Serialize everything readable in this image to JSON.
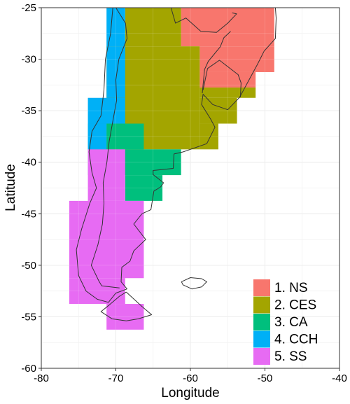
{
  "chart_data": {
    "type": "map",
    "xlabel": "Longitude",
    "ylabel": "Latitude",
    "xlim": [
      -80,
      -40
    ],
    "ylim": [
      -60,
      -25
    ],
    "x_ticks": [
      -80,
      -70,
      -60,
      -50,
      -40
    ],
    "y_ticks": [
      -60,
      -55,
      -50,
      -45,
      -40,
      -35,
      -30,
      -25
    ],
    "x_tick_labels": [
      "-80",
      "-70",
      "-60",
      "-50",
      "-40"
    ],
    "y_tick_labels": [
      "-60",
      "-55",
      "-50",
      "-45",
      "-40",
      "-35",
      "-30",
      "-25"
    ],
    "grid": true,
    "legend_position": "bottom-right",
    "colors": {
      "panel": "#ffffff",
      "grid": "#e8e8e8",
      "coast": "#333333"
    },
    "regions": [
      {
        "label": "1. NS",
        "color": "#F8766D",
        "cells": [
          [
            -61.25,
            -28.75,
            -48.75,
            -25.0
          ],
          [
            -58.75,
            -31.25,
            -48.75,
            -28.75
          ],
          [
            -58.75,
            -32.75,
            -51.25,
            -31.25
          ]
        ]
      },
      {
        "label": "2. CES",
        "color": "#A3A500",
        "cells": [
          [
            -68.75,
            -28.75,
            -61.25,
            -25.0
          ],
          [
            -71.25,
            -38.75,
            -58.75,
            -28.75
          ],
          [
            -58.75,
            -33.75,
            -51.25,
            -32.75
          ],
          [
            -58.75,
            -36.25,
            -53.75,
            -33.75
          ],
          [
            -58.75,
            -38.75,
            -56.25,
            -36.25
          ]
        ]
      },
      {
        "label": "3. CA",
        "color": "#00BF7D",
        "cells": [
          [
            -71.25,
            -38.75,
            -66.25,
            -36.25
          ],
          [
            -73.75,
            -38.75,
            -71.25,
            -36.25
          ],
          [
            -73.75,
            -41.25,
            -61.25,
            -38.75
          ],
          [
            -68.75,
            -43.75,
            -63.75,
            -41.25
          ]
        ]
      },
      {
        "label": "4. CCH",
        "color": "#00B0F6",
        "cells": [
          [
            -71.25,
            -28.75,
            -68.75,
            -25.0
          ],
          [
            -71.25,
            -33.75,
            -68.75,
            -28.75
          ],
          [
            -73.75,
            -36.25,
            -68.75,
            -33.75
          ],
          [
            -73.75,
            -38.75,
            -71.25,
            -36.25
          ]
        ]
      },
      {
        "label": "5. SS",
        "color": "#E76BF3",
        "cells": [
          [
            -73.75,
            -43.75,
            -68.75,
            -38.75
          ],
          [
            -76.25,
            -51.25,
            -66.25,
            -43.75
          ],
          [
            -76.25,
            -53.75,
            -68.75,
            -51.25
          ],
          [
            -71.25,
            -56.25,
            -66.25,
            -53.75
          ]
        ]
      }
    ],
    "coastlines": [
      [
        [
          -70.4,
          -25.0
        ],
        [
          -70.7,
          -27.5
        ],
        [
          -71.4,
          -30.0
        ],
        [
          -71.6,
          -33.0
        ],
        [
          -72.0,
          -35.5
        ],
        [
          -73.2,
          -37.0
        ],
        [
          -73.6,
          -39.0
        ],
        [
          -73.2,
          -41.0
        ],
        [
          -72.6,
          -42.5
        ],
        [
          -73.5,
          -44.0
        ],
        [
          -74.6,
          -46.5
        ],
        [
          -75.3,
          -48.5
        ],
        [
          -75.0,
          -51.0
        ],
        [
          -74.0,
          -52.5
        ],
        [
          -72.5,
          -53.3
        ],
        [
          -71.0,
          -53.6
        ],
        [
          -70.0,
          -52.7
        ],
        [
          -68.5,
          -52.3
        ],
        [
          -69.3,
          -51.6
        ],
        [
          -69.2,
          -50.2
        ],
        [
          -68.1,
          -49.6
        ],
        [
          -67.6,
          -48.6
        ],
        [
          -66.0,
          -47.5
        ],
        [
          -67.6,
          -46.0
        ],
        [
          -66.5,
          -45.0
        ],
        [
          -65.3,
          -44.6
        ],
        [
          -64.9,
          -42.8
        ],
        [
          -64.0,
          -42.4
        ],
        [
          -63.6,
          -42.0
        ],
        [
          -65.0,
          -41.2
        ],
        [
          -65.0,
          -40.8
        ],
        [
          -62.3,
          -40.6
        ],
        [
          -62.2,
          -39.2
        ],
        [
          -61.0,
          -39.0
        ],
        [
          -57.8,
          -38.2
        ],
        [
          -56.7,
          -36.6
        ],
        [
          -57.3,
          -35.8
        ],
        [
          -58.5,
          -34.4
        ],
        [
          -58.3,
          -33.4
        ],
        [
          -57.0,
          -34.4
        ],
        [
          -55.0,
          -34.9
        ],
        [
          -53.4,
          -33.7
        ],
        [
          -51.0,
          -30.5
        ],
        [
          -50.1,
          -29.2
        ],
        [
          -48.6,
          -28.0
        ],
        [
          -48.5,
          -26.0
        ],
        [
          -48.6,
          -25.0
        ]
      ],
      [
        [
          -68.6,
          -52.6
        ],
        [
          -66.5,
          -54.0
        ],
        [
          -65.2,
          -54.8
        ],
        [
          -67.0,
          -55.2
        ],
        [
          -68.6,
          -55.4
        ],
        [
          -70.5,
          -55.2
        ],
        [
          -72.0,
          -54.5
        ],
        [
          -70.8,
          -53.8
        ],
        [
          -69.5,
          -53.0
        ],
        [
          -68.6,
          -52.6
        ]
      ],
      [
        [
          -61.2,
          -51.6
        ],
        [
          -60.0,
          -51.2
        ],
        [
          -58.5,
          -51.3
        ],
        [
          -57.8,
          -51.6
        ],
        [
          -58.5,
          -52.1
        ],
        [
          -59.8,
          -52.3
        ],
        [
          -61.0,
          -51.9
        ],
        [
          -61.2,
          -51.6
        ]
      ],
      [
        [
          -70.0,
          -25.0
        ],
        [
          -68.7,
          -26.5
        ],
        [
          -68.5,
          -28.0
        ],
        [
          -69.6,
          -30.0
        ],
        [
          -70.0,
          -32.0
        ],
        [
          -69.9,
          -34.0
        ],
        [
          -70.4,
          -36.0
        ],
        [
          -70.9,
          -38.0
        ],
        [
          -71.2,
          -40.0
        ],
        [
          -71.7,
          -42.0
        ],
        [
          -71.6,
          -44.0
        ],
        [
          -71.8,
          -46.0
        ],
        [
          -72.4,
          -48.0
        ],
        [
          -73.3,
          -50.0
        ],
        [
          -72.3,
          -51.5
        ],
        [
          -71.9,
          -52.0
        ],
        [
          -69.5,
          -52.2
        ]
      ],
      [
        [
          -62.6,
          -25.0
        ],
        [
          -62.0,
          -26.5
        ],
        [
          -60.6,
          -26.0
        ],
        [
          -58.6,
          -27.3
        ],
        [
          -56.5,
          -27.4
        ],
        [
          -55.0,
          -26.5
        ],
        [
          -53.8,
          -25.6
        ],
        [
          -54.4,
          -25.5
        ]
      ],
      [
        [
          -58.4,
          -33.3
        ],
        [
          -58.1,
          -31.0
        ],
        [
          -57.6,
          -30.2
        ],
        [
          -56.0,
          -28.8
        ],
        [
          -55.5,
          -27.9
        ],
        [
          -54.6,
          -27.3
        ]
      ],
      [
        [
          -58.3,
          -33.0
        ],
        [
          -57.7,
          -30.9
        ],
        [
          -56.1,
          -30.1
        ],
        [
          -53.6,
          -31.5
        ],
        [
          -53.2,
          -32.3
        ],
        [
          -53.3,
          -33.7
        ]
      ]
    ]
  }
}
